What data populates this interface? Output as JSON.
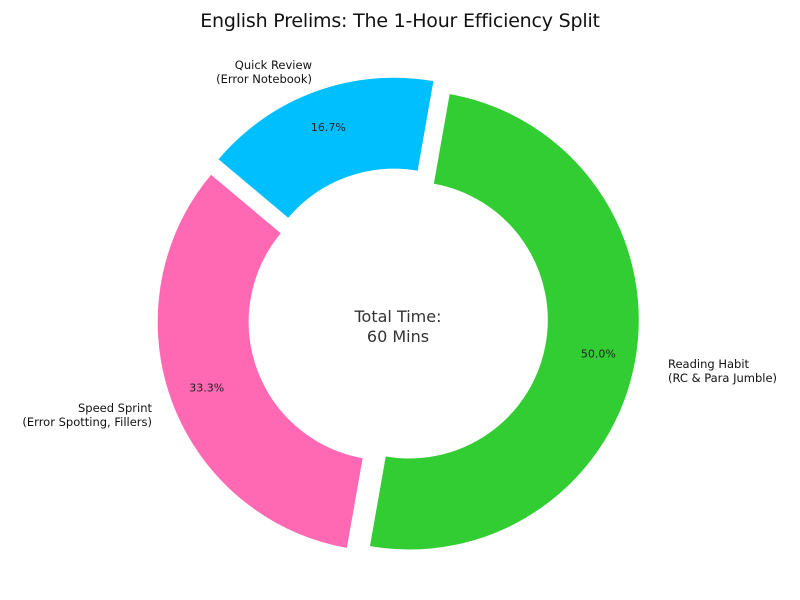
{
  "chart_data": {
    "type": "pie",
    "subtype": "donut",
    "title": "English Prelims: The 1-Hour Efficiency Split",
    "center_label": [
      "Total Time:",
      "60 Mins"
    ],
    "categories": [
      "Reading Habit (RC & Para Jumble)",
      "Speed Sprint (Error Spotting, Fillers)",
      "Quick Review (Error Notebook)"
    ],
    "values": [
      30,
      20,
      10
    ],
    "unit": "minutes",
    "percent_labels": [
      "50.0%",
      "33.3%",
      "16.7%"
    ],
    "colors": [
      "#32cd32",
      "#ff69b4",
      "#00bfff"
    ],
    "label_lines": [
      [
        "Reading Habit",
        "(RC & Para Jumble)"
      ],
      [
        "Speed Sprint",
        "(Error Spotting, Fillers)"
      ],
      [
        "Quick Review",
        "(Error Notebook)"
      ]
    ],
    "explode": [
      0.05,
      0.05,
      0.05
    ],
    "legend": false
  }
}
